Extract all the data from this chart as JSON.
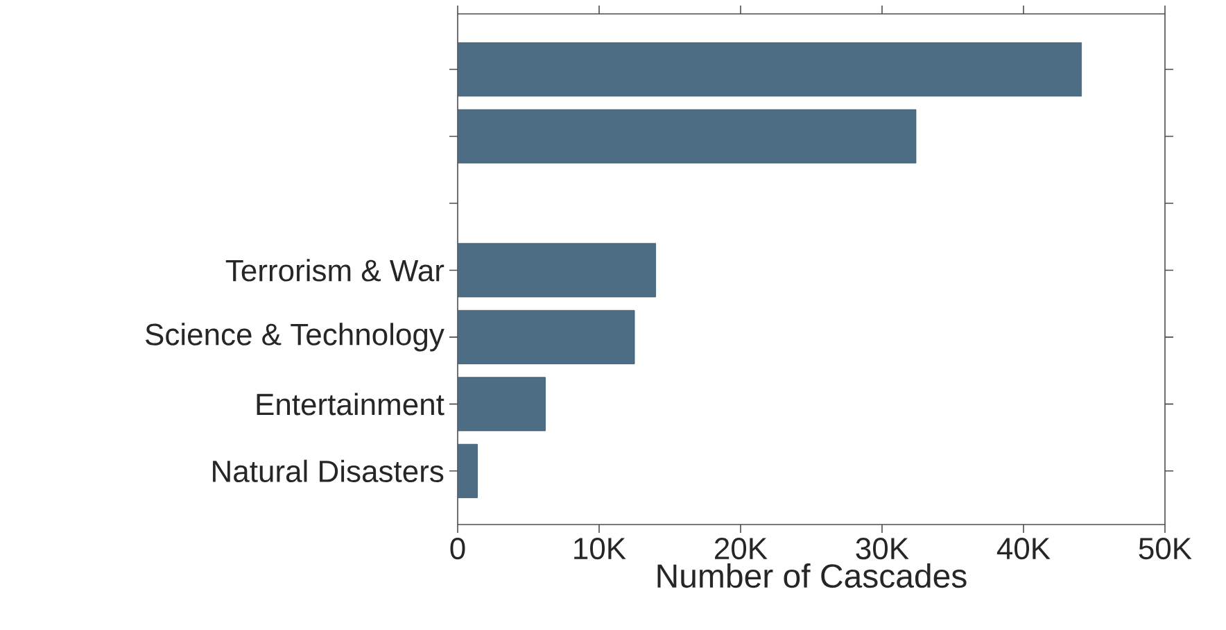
{
  "chart_data": {
    "type": "bar",
    "orientation": "horizontal",
    "xlabel": "Number of Cascades",
    "categories": [
      null,
      null,
      null,
      "Terrorism & War",
      "Science & Technology",
      "Entertainment",
      "Natural Disasters"
    ],
    "values": [
      44100,
      32400,
      null,
      14000,
      12500,
      6200,
      1400
    ],
    "color": "#4c6d84",
    "xlim": [
      0,
      50000
    ],
    "xticks": [
      {
        "value": 0,
        "label": "0"
      },
      {
        "value": 10000,
        "label": "10K"
      },
      {
        "value": 20000,
        "label": "20K"
      },
      {
        "value": 30000,
        "label": "30K"
      },
      {
        "value": 40000,
        "label": "40K"
      },
      {
        "value": 50000,
        "label": "50K"
      }
    ]
  }
}
